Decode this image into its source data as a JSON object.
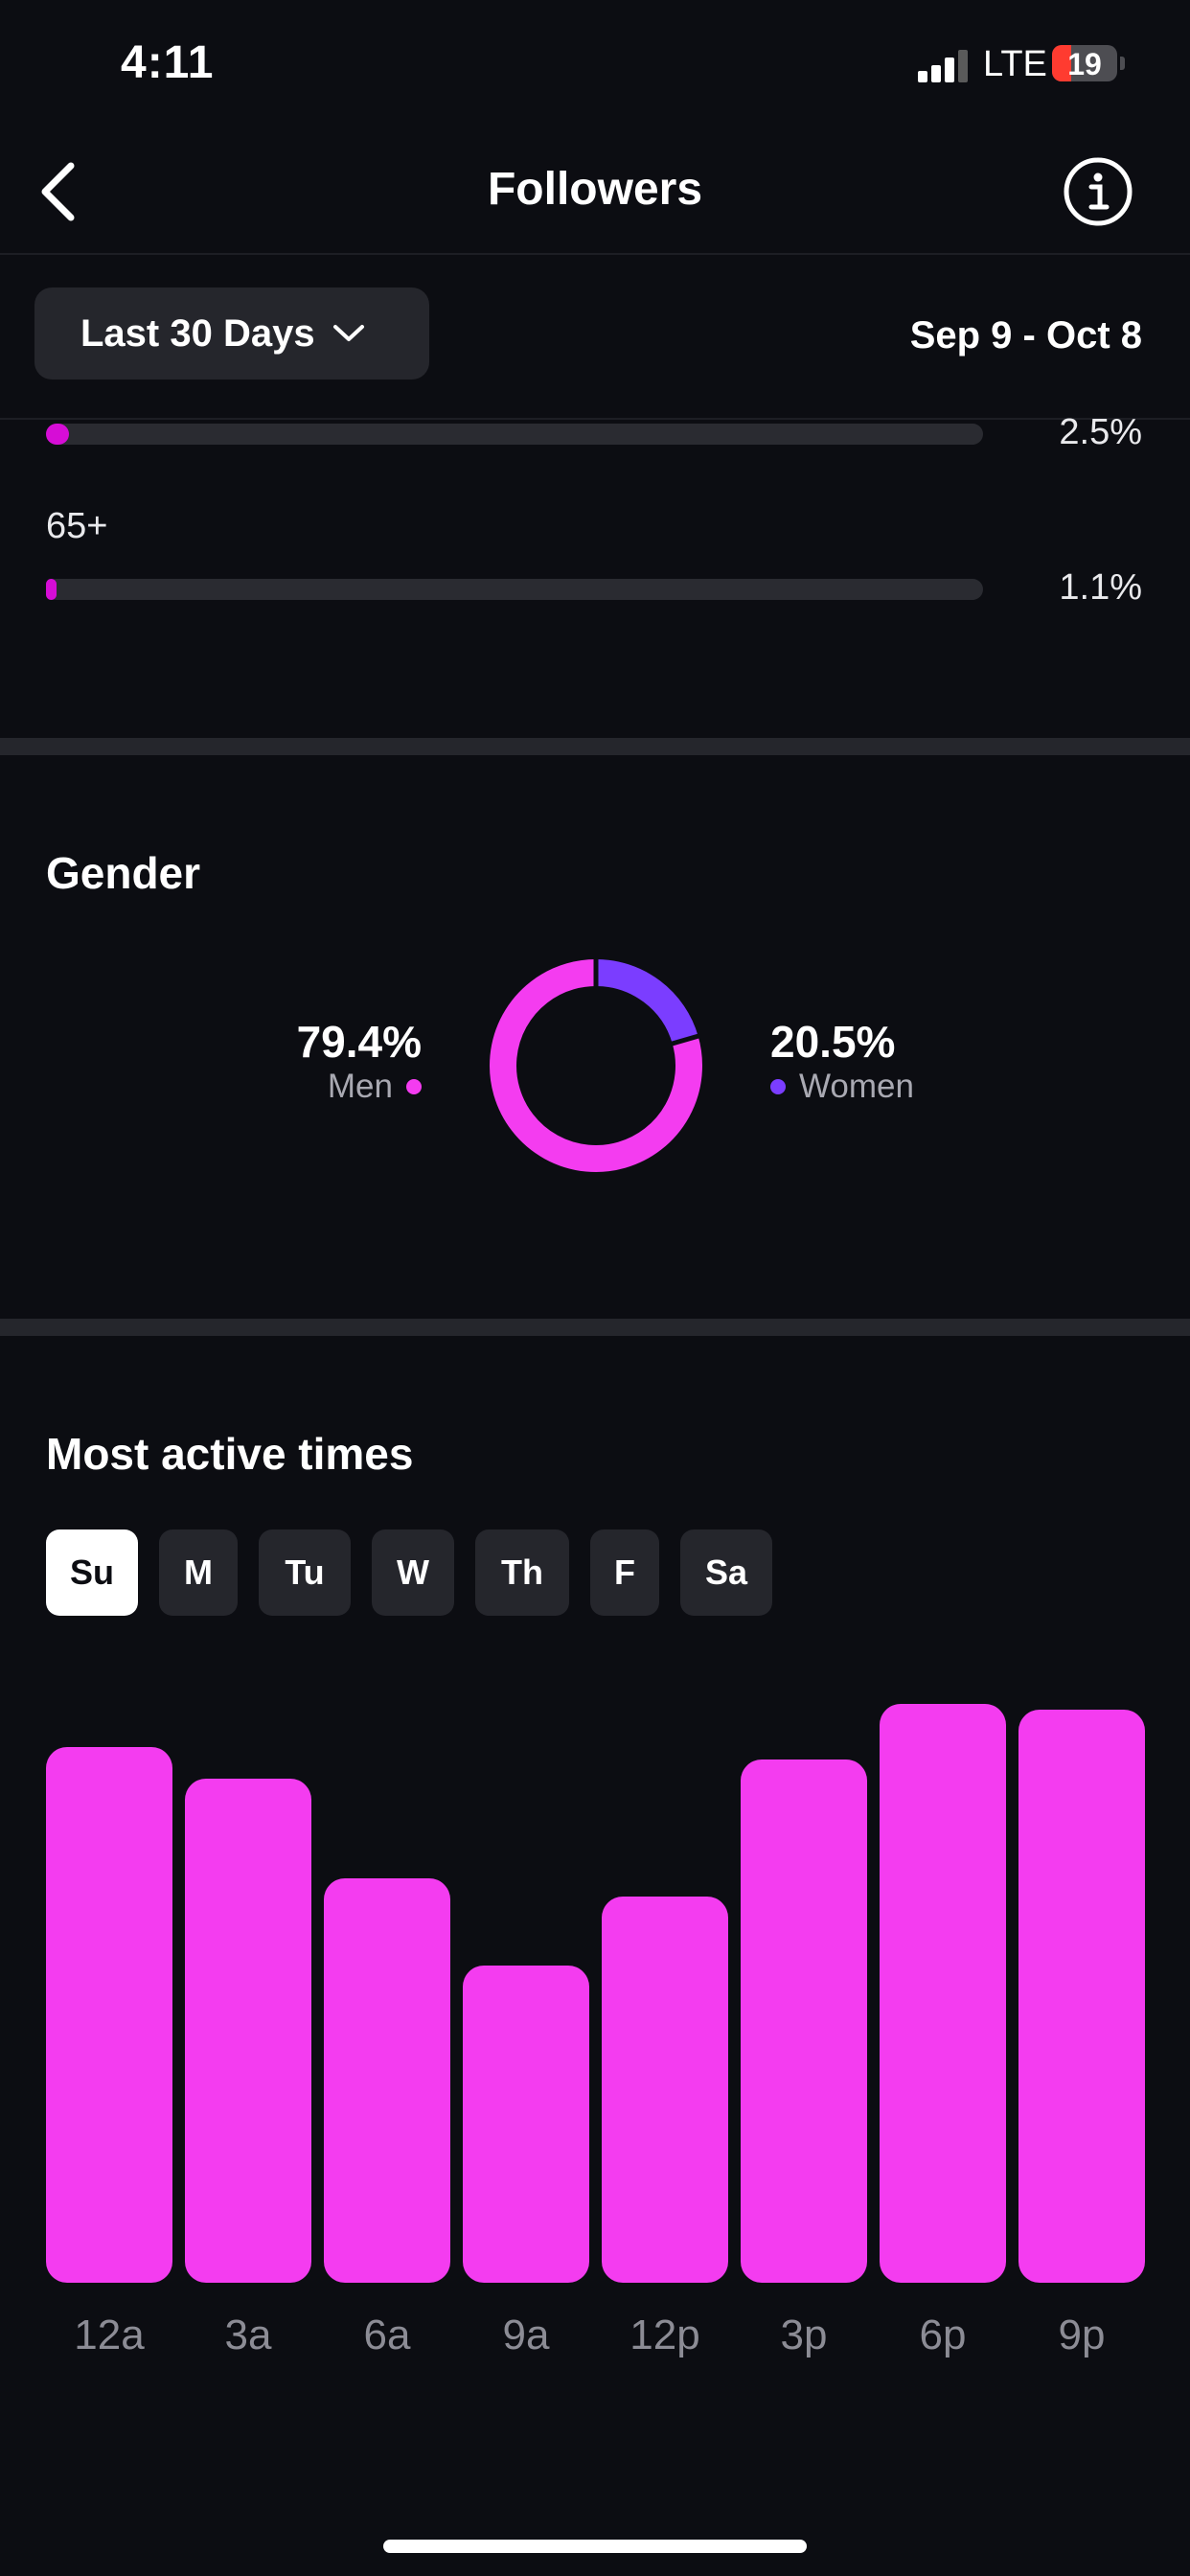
{
  "status_bar": {
    "time": "4:11",
    "network": "LTE",
    "battery": "19"
  },
  "nav": {
    "title": "Followers",
    "back_icon": "chevron-left-icon",
    "info_icon": "info-icon"
  },
  "filter": {
    "range_label": "Last 30 Days",
    "date_range": "Sep 9 - Oct 8"
  },
  "age": {
    "rows": [
      {
        "label": "",
        "percent": "2.5%",
        "value": 2.5
      },
      {
        "label": "65+",
        "percent": "1.1%",
        "value": 1.1
      }
    ]
  },
  "gender": {
    "title": "Gender",
    "men": {
      "percent": "79.4%",
      "label": "Men",
      "value": 79.4,
      "color": "#f43cf0"
    },
    "women": {
      "percent": "20.5%",
      "label": "Women",
      "value": 20.5,
      "color": "#7b3dff"
    }
  },
  "active_times": {
    "title": "Most active times",
    "days": [
      {
        "label": "Su",
        "active": true
      },
      {
        "label": "M",
        "active": false
      },
      {
        "label": "Tu",
        "active": false
      },
      {
        "label": "W",
        "active": false
      },
      {
        "label": "Th",
        "active": false
      },
      {
        "label": "F",
        "active": false
      },
      {
        "label": "Sa",
        "active": false
      }
    ]
  },
  "chart_data": {
    "type": "bar",
    "categories": [
      "12a",
      "3a",
      "6a",
      "9a",
      "12p",
      "3p",
      "6p",
      "9p"
    ],
    "values": [
      86,
      81,
      65,
      51,
      62,
      84,
      93,
      92
    ],
    "ylim": [
      0,
      100
    ],
    "color": "#f43cf0",
    "grid": false
  }
}
